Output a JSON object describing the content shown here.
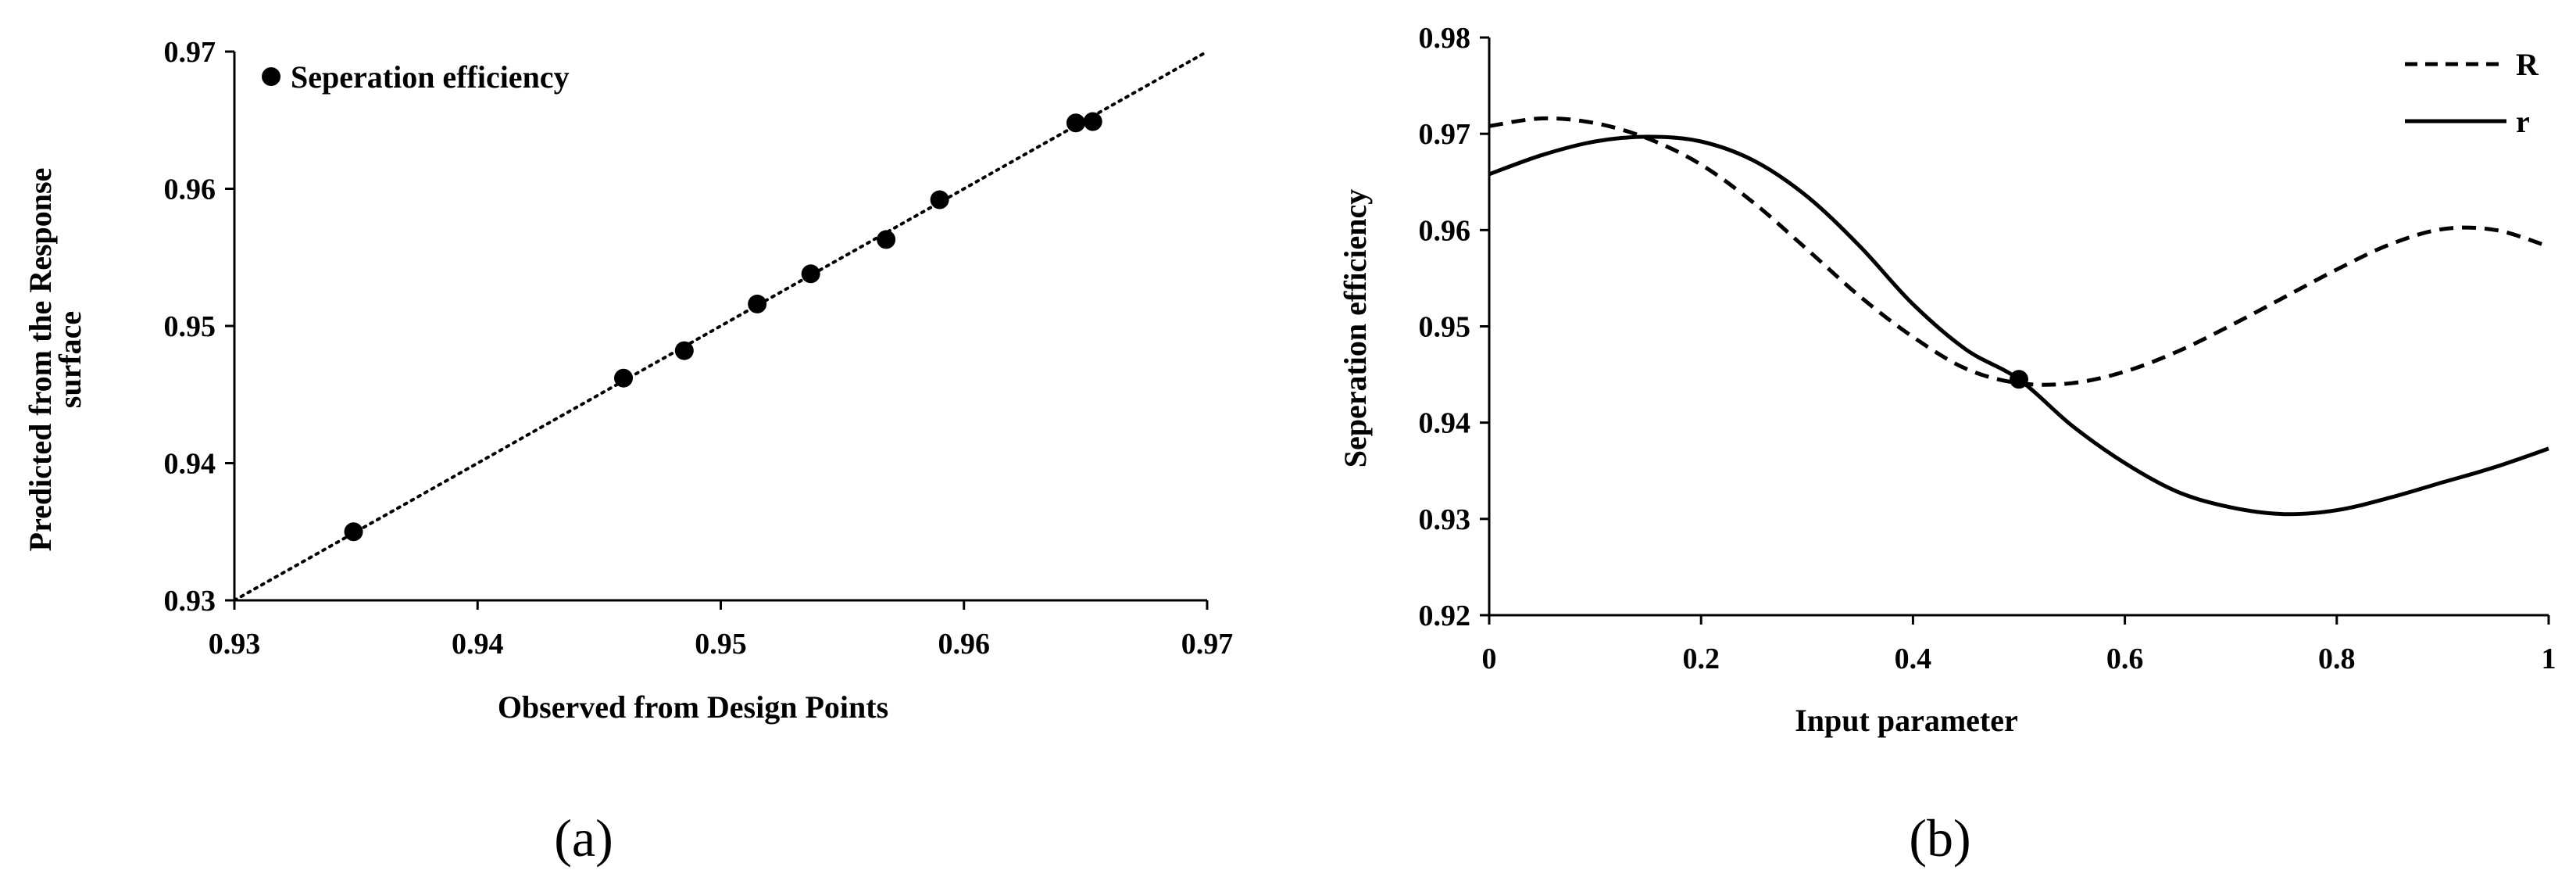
{
  "chart_data": [
    {
      "type": "scatter",
      "panel_label": "(a)",
      "xlabel": "Observed from Design Points",
      "ylabel": [
        "Predicted from the Response",
        "surface"
      ],
      "xlim": [
        0.93,
        0.97
      ],
      "ylim": [
        0.93,
        0.97
      ],
      "x_ticks": [
        "0.93",
        "0.94",
        "0.95",
        "0.96",
        "0.97"
      ],
      "y_ticks": [
        "0.93",
        "0.94",
        "0.95",
        "0.96",
        "0.97"
      ],
      "grid": false,
      "legend_position": "top-left",
      "reference_line": {
        "style": "dotted",
        "from": [
          0.93,
          0.93
        ],
        "to": [
          0.97,
          0.97
        ]
      },
      "series": [
        {
          "name": "Seperation efficiency",
          "marker": "filled-circle",
          "points": [
            {
              "x": 0.9349,
              "y": 0.935
            },
            {
              "x": 0.946,
              "y": 0.9462
            },
            {
              "x": 0.9485,
              "y": 0.9482
            },
            {
              "x": 0.9515,
              "y": 0.9516
            },
            {
              "x": 0.9537,
              "y": 0.9538
            },
            {
              "x": 0.9568,
              "y": 0.9563
            },
            {
              "x": 0.959,
              "y": 0.9592
            },
            {
              "x": 0.9646,
              "y": 0.9648
            },
            {
              "x": 0.9653,
              "y": 0.9649
            }
          ]
        }
      ]
    },
    {
      "type": "line",
      "panel_label": "(b)",
      "xlabel": "Input parameter",
      "ylabel": "Seperation efficiency",
      "xlim": [
        0,
        1
      ],
      "ylim": [
        0.92,
        0.98
      ],
      "x_ticks": [
        "0",
        "0.2",
        "0.4",
        "0.6",
        "0.8",
        "1"
      ],
      "y_ticks": [
        "0.92",
        "0.93",
        "0.94",
        "0.95",
        "0.96",
        "0.97",
        "0.98"
      ],
      "grid": false,
      "legend_position": "top-right",
      "series": [
        {
          "name": "R",
          "style": "dashed",
          "x": [
            0,
            0.05,
            0.1,
            0.15,
            0.2,
            0.25,
            0.3,
            0.35,
            0.4,
            0.45,
            0.5,
            0.55,
            0.6,
            0.65,
            0.7,
            0.75,
            0.8,
            0.85,
            0.9,
            0.95,
            1.0
          ],
          "y": [
            0.9708,
            0.9716,
            0.9711,
            0.9695,
            0.9668,
            0.9628,
            0.958,
            0.9531,
            0.9489,
            0.9456,
            0.9441,
            0.9441,
            0.9453,
            0.9474,
            0.9501,
            0.953,
            0.9559,
            0.9585,
            0.9601,
            0.96,
            0.9583
          ]
        },
        {
          "name": "r",
          "style": "solid",
          "x": [
            0,
            0.05,
            0.1,
            0.15,
            0.2,
            0.25,
            0.3,
            0.35,
            0.4,
            0.45,
            0.5,
            0.55,
            0.6,
            0.65,
            0.7,
            0.75,
            0.8,
            0.85,
            0.9,
            0.95,
            1.0
          ],
          "y": [
            0.9658,
            0.9678,
            0.9692,
            0.9697,
            0.9692,
            0.9672,
            0.9635,
            0.9583,
            0.9523,
            0.9476,
            0.9445,
            0.9397,
            0.9358,
            0.9328,
            0.9312,
            0.9305,
            0.9309,
            0.9322,
            0.9338,
            0.9354,
            0.9373
          ]
        }
      ],
      "markers": [
        {
          "x": 0.5,
          "y": 0.9445
        }
      ]
    }
  ]
}
